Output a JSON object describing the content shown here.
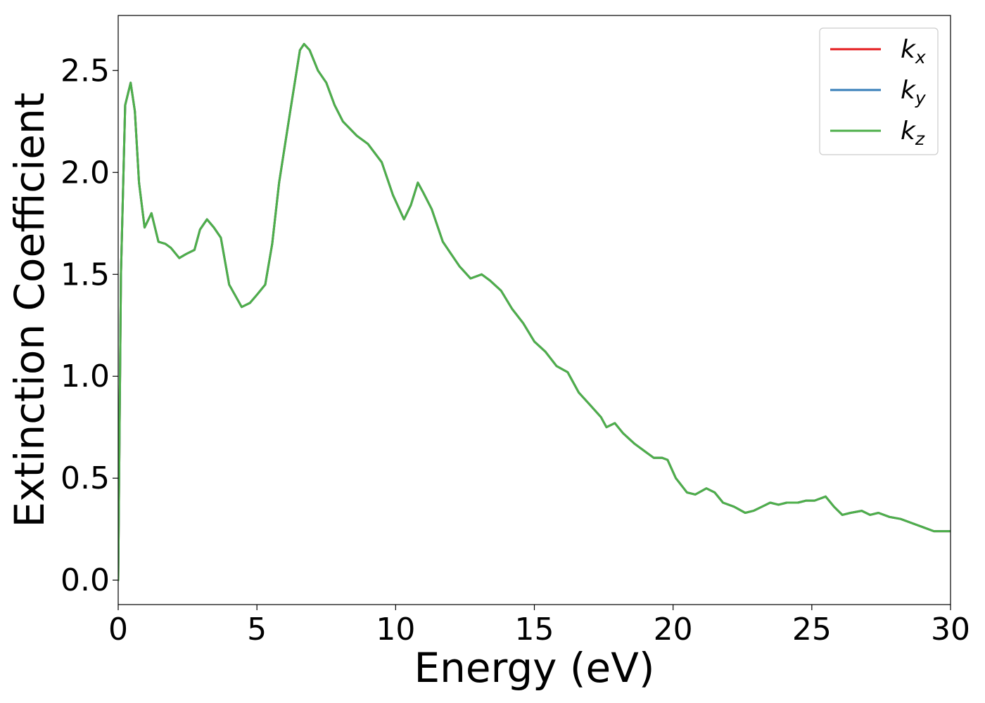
{
  "chart_data": {
    "type": "line",
    "title": "",
    "xlabel": "Energy (eV)",
    "ylabel": "Extinction Coefficient",
    "xlim": [
      0,
      30
    ],
    "ylim": [
      -0.12,
      2.77
    ],
    "xticks": [
      0,
      5,
      10,
      15,
      20,
      25,
      30
    ],
    "xtick_labels": [
      "0",
      "5",
      "10",
      "15",
      "20",
      "25",
      "30"
    ],
    "yticks": [
      0.0,
      0.5,
      1.0,
      1.5,
      2.0,
      2.5
    ],
    "ytick_labels": [
      "0.0",
      "0.5",
      "1.0",
      "1.5",
      "2.0",
      "2.5"
    ],
    "grid": false,
    "legend_position": "top-right",
    "x": [
      0,
      0.1,
      0.25,
      0.45,
      0.6,
      0.75,
      0.95,
      1.2,
      1.45,
      1.7,
      1.9,
      2.2,
      2.45,
      2.75,
      2.95,
      3.2,
      3.45,
      3.7,
      4.0,
      4.45,
      4.75,
      5.0,
      5.3,
      5.55,
      5.8,
      6.2,
      6.55,
      6.7,
      6.9,
      7.2,
      7.5,
      7.8,
      8.1,
      8.6,
      9.0,
      9.5,
      9.9,
      10.3,
      10.55,
      10.8,
      11.0,
      11.3,
      11.7,
      12.0,
      12.3,
      12.7,
      13.1,
      13.4,
      13.8,
      14.2,
      14.6,
      15.0,
      15.4,
      15.8,
      16.2,
      16.6,
      17.0,
      17.4,
      17.6,
      17.9,
      18.2,
      18.6,
      19.0,
      19.3,
      19.6,
      19.8,
      20.1,
      20.5,
      20.8,
      21.2,
      21.5,
      21.8,
      22.2,
      22.6,
      22.9,
      23.2,
      23.5,
      23.8,
      24.1,
      24.5,
      24.8,
      25.1,
      25.5,
      25.8,
      26.1,
      26.4,
      26.8,
      27.1,
      27.4,
      27.8,
      28.2,
      28.6,
      29.0,
      29.4,
      30.0
    ],
    "series": [
      {
        "name": "k_x",
        "color": "#e41a1c",
        "values": [
          0.0,
          1.5,
          2.33,
          2.44,
          2.3,
          1.95,
          1.73,
          1.8,
          1.66,
          1.65,
          1.63,
          1.58,
          1.6,
          1.62,
          1.72,
          1.77,
          1.73,
          1.68,
          1.45,
          1.34,
          1.36,
          1.4,
          1.45,
          1.65,
          1.95,
          2.3,
          2.6,
          2.63,
          2.6,
          2.5,
          2.44,
          2.33,
          2.25,
          2.18,
          2.14,
          2.05,
          1.89,
          1.77,
          1.84,
          1.95,
          1.9,
          1.82,
          1.66,
          1.6,
          1.54,
          1.48,
          1.5,
          1.47,
          1.42,
          1.33,
          1.26,
          1.17,
          1.12,
          1.05,
          1.02,
          0.92,
          0.86,
          0.8,
          0.75,
          0.77,
          0.72,
          0.67,
          0.63,
          0.6,
          0.6,
          0.59,
          0.5,
          0.43,
          0.42,
          0.45,
          0.43,
          0.38,
          0.36,
          0.33,
          0.34,
          0.36,
          0.38,
          0.37,
          0.38,
          0.38,
          0.39,
          0.39,
          0.41,
          0.36,
          0.32,
          0.33,
          0.34,
          0.32,
          0.33,
          0.31,
          0.3,
          0.28,
          0.26,
          0.24,
          0.24
        ]
      },
      {
        "name": "k_y",
        "color": "#377eb8",
        "values": [
          0.0,
          1.5,
          2.33,
          2.44,
          2.3,
          1.95,
          1.73,
          1.8,
          1.66,
          1.65,
          1.63,
          1.58,
          1.6,
          1.62,
          1.72,
          1.77,
          1.73,
          1.68,
          1.45,
          1.34,
          1.36,
          1.4,
          1.45,
          1.65,
          1.95,
          2.3,
          2.6,
          2.63,
          2.6,
          2.5,
          2.44,
          2.33,
          2.25,
          2.18,
          2.14,
          2.05,
          1.89,
          1.77,
          1.84,
          1.95,
          1.9,
          1.82,
          1.66,
          1.6,
          1.54,
          1.48,
          1.5,
          1.47,
          1.42,
          1.33,
          1.26,
          1.17,
          1.12,
          1.05,
          1.02,
          0.92,
          0.86,
          0.8,
          0.75,
          0.77,
          0.72,
          0.67,
          0.63,
          0.6,
          0.6,
          0.59,
          0.5,
          0.43,
          0.42,
          0.45,
          0.43,
          0.38,
          0.36,
          0.33,
          0.34,
          0.36,
          0.38,
          0.37,
          0.38,
          0.38,
          0.39,
          0.39,
          0.41,
          0.36,
          0.32,
          0.33,
          0.34,
          0.32,
          0.33,
          0.31,
          0.3,
          0.28,
          0.26,
          0.24,
          0.24
        ]
      },
      {
        "name": "k_z",
        "color": "#4daf4a",
        "values": [
          0.0,
          1.5,
          2.33,
          2.44,
          2.3,
          1.95,
          1.73,
          1.8,
          1.66,
          1.65,
          1.63,
          1.58,
          1.6,
          1.62,
          1.72,
          1.77,
          1.73,
          1.68,
          1.45,
          1.34,
          1.36,
          1.4,
          1.45,
          1.65,
          1.95,
          2.3,
          2.6,
          2.63,
          2.6,
          2.5,
          2.44,
          2.33,
          2.25,
          2.18,
          2.14,
          2.05,
          1.89,
          1.77,
          1.84,
          1.95,
          1.9,
          1.82,
          1.66,
          1.6,
          1.54,
          1.48,
          1.5,
          1.47,
          1.42,
          1.33,
          1.26,
          1.17,
          1.12,
          1.05,
          1.02,
          0.92,
          0.86,
          0.8,
          0.75,
          0.77,
          0.72,
          0.67,
          0.63,
          0.6,
          0.6,
          0.59,
          0.5,
          0.43,
          0.42,
          0.45,
          0.43,
          0.38,
          0.36,
          0.33,
          0.34,
          0.36,
          0.38,
          0.37,
          0.38,
          0.38,
          0.39,
          0.39,
          0.41,
          0.36,
          0.32,
          0.33,
          0.34,
          0.32,
          0.33,
          0.31,
          0.3,
          0.28,
          0.26,
          0.24,
          0.24
        ]
      }
    ],
    "legend": [
      {
        "base": "k",
        "sub": "x"
      },
      {
        "base": "k",
        "sub": "y"
      },
      {
        "base": "k",
        "sub": "z"
      }
    ]
  }
}
